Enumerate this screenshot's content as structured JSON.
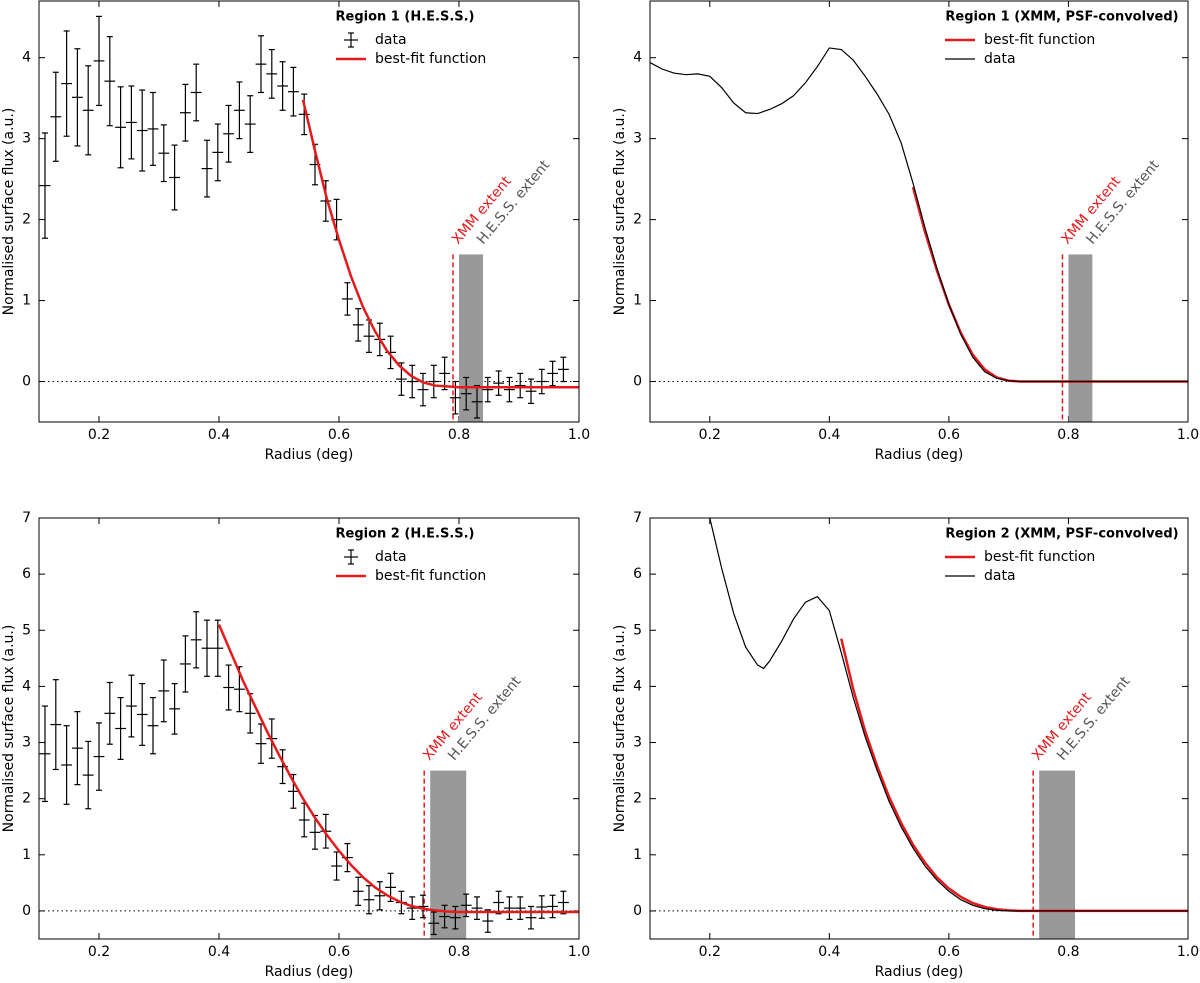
{
  "chart_data": [
    {
      "type": "errorbar",
      "title": "Region 1 (H.E.S.S.)",
      "xlabel": "Radius (deg)",
      "ylabel": "Normalised surface flux (a.u.)",
      "xlim": [
        0.1,
        1.0
      ],
      "ylim": [
        -0.5,
        4.7
      ],
      "xticks": [
        0.2,
        0.4,
        0.6,
        0.8,
        {
          "value": 1,
          "label": "1.0"
        }
      ],
      "yticks": [
        0,
        1,
        2,
        3,
        4
      ],
      "series": [
        {
          "name": "data",
          "style": "errorbar",
          "color": "#000000",
          "xerr": 0.009,
          "x": [
            0.11,
            0.128,
            0.146,
            0.164,
            0.182,
            0.2,
            0.218,
            0.236,
            0.254,
            0.272,
            0.29,
            0.308,
            0.326,
            0.344,
            0.362,
            0.38,
            0.398,
            0.416,
            0.434,
            0.452,
            0.47,
            0.488,
            0.506,
            0.524,
            0.542,
            0.56,
            0.578,
            0.596,
            0.614,
            0.632,
            0.65,
            0.668,
            0.686,
            0.704,
            0.722,
            0.74,
            0.758,
            0.776,
            0.794,
            0.812,
            0.83,
            0.848,
            0.866,
            0.884,
            0.902,
            0.92,
            0.938,
            0.956,
            0.974
          ],
          "values": [
            2.42,
            3.27,
            3.68,
            3.51,
            3.35,
            3.96,
            3.71,
            3.14,
            3.2,
            3.1,
            3.12,
            2.82,
            2.52,
            3.32,
            3.57,
            2.63,
            2.83,
            3.06,
            3.35,
            3.18,
            3.92,
            3.8,
            3.65,
            3.58,
            3.3,
            2.68,
            2.23,
            2.0,
            1.02,
            0.7,
            0.56,
            0.52,
            0.36,
            0.03,
            0.0,
            -0.1,
            0.0,
            0.1,
            -0.2,
            -0.15,
            -0.25,
            -0.1,
            -0.02,
            -0.1,
            -0.05,
            -0.12,
            0.0,
            0.1,
            0.15
          ],
          "yerr": [
            0.65,
            0.55,
            0.65,
            0.6,
            0.55,
            0.55,
            0.55,
            0.5,
            0.45,
            0.5,
            0.45,
            0.35,
            0.4,
            0.35,
            0.35,
            0.35,
            0.35,
            0.35,
            0.35,
            0.35,
            0.35,
            0.3,
            0.3,
            0.3,
            0.25,
            0.25,
            0.25,
            0.25,
            0.2,
            0.2,
            0.2,
            0.2,
            0.2,
            0.2,
            0.2,
            0.2,
            0.2,
            0.2,
            0.2,
            0.2,
            0.2,
            0.15,
            0.15,
            0.15,
            0.15,
            0.15,
            0.15,
            0.15,
            0.15
          ]
        },
        {
          "name": "best-fit function",
          "style": "line",
          "color": "#e41a1c",
          "width": 2.5,
          "x": [
            0.54,
            0.56,
            0.58,
            0.6,
            0.62,
            0.64,
            0.66,
            0.68,
            0.7,
            0.72,
            0.74,
            0.76,
            0.78,
            0.8,
            0.9,
            1.0
          ],
          "values": [
            3.48,
            2.85,
            2.25,
            1.75,
            1.3,
            0.92,
            0.62,
            0.38,
            0.2,
            0.07,
            -0.01,
            -0.05,
            -0.06,
            -0.07,
            -0.07,
            -0.07
          ]
        }
      ],
      "xmm_extent": 0.79,
      "hess_extent": [
        0.8,
        0.84
      ],
      "extent_height": 1.57,
      "xmm_label": "XMM extent",
      "hess_label": "H.E.S.S. extent"
    },
    {
      "type": "line",
      "title": "Region 1 (XMM, PSF-convolved)",
      "xlabel": "Radius (deg)",
      "ylabel": "Normalised surface flux (a.u.)",
      "xlim": [
        0.1,
        1.0
      ],
      "ylim": [
        -0.5,
        4.7
      ],
      "xticks": [
        0.2,
        0.4,
        0.6,
        0.8,
        {
          "value": 1,
          "label": "1.0"
        }
      ],
      "yticks": [
        0,
        1,
        2,
        3,
        4
      ],
      "series": [
        {
          "name": "best-fit function",
          "style": "line",
          "color": "#e41a1c",
          "width": 2.5,
          "x": [
            0.54,
            0.56,
            0.58,
            0.6,
            0.62,
            0.64,
            0.66,
            0.68,
            0.7,
            0.72,
            1.0
          ],
          "values": [
            2.4,
            1.85,
            1.37,
            0.95,
            0.6,
            0.33,
            0.15,
            0.05,
            0.01,
            0,
            0
          ]
        },
        {
          "name": "data",
          "style": "line",
          "color": "#000000",
          "width": 1.2,
          "x": [
            0.1,
            0.12,
            0.14,
            0.16,
            0.18,
            0.2,
            0.22,
            0.24,
            0.26,
            0.28,
            0.3,
            0.32,
            0.34,
            0.36,
            0.38,
            0.4,
            0.42,
            0.44,
            0.46,
            0.48,
            0.5,
            0.52,
            0.54,
            0.56,
            0.58,
            0.6,
            0.62,
            0.64,
            0.66,
            0.68,
            0.7,
            0.72,
            1.0
          ],
          "values": [
            3.94,
            3.86,
            3.81,
            3.79,
            3.8,
            3.77,
            3.63,
            3.44,
            3.32,
            3.31,
            3.36,
            3.43,
            3.53,
            3.69,
            3.89,
            4.12,
            4.1,
            3.97,
            3.77,
            3.55,
            3.3,
            2.95,
            2.45,
            1.9,
            1.4,
            0.95,
            0.58,
            0.3,
            0.12,
            0.04,
            0.01,
            0,
            0
          ]
        }
      ],
      "xmm_extent": 0.79,
      "hess_extent": [
        0.8,
        0.84
      ],
      "extent_height": 1.57,
      "xmm_label": "XMM extent",
      "hess_label": "H.E.S.S. extent"
    },
    {
      "type": "errorbar",
      "title": "Region 2 (H.E.S.S.)",
      "xlabel": "Radius (deg)",
      "ylabel": "Normalised surface flux (a.u.)",
      "xlim": [
        0.1,
        1.0
      ],
      "ylim": [
        -0.5,
        7
      ],
      "xticks": [
        0.2,
        0.4,
        0.6,
        0.8,
        {
          "value": 1,
          "label": "1.0"
        }
      ],
      "yticks": [
        0,
        1,
        2,
        3,
        4,
        5,
        6,
        7
      ],
      "series": [
        {
          "name": "data",
          "style": "errorbar",
          "color": "#000000",
          "xerr": 0.009,
          "x": [
            0.11,
            0.128,
            0.146,
            0.164,
            0.182,
            0.2,
            0.218,
            0.236,
            0.254,
            0.272,
            0.29,
            0.308,
            0.326,
            0.344,
            0.362,
            0.38,
            0.398,
            0.416,
            0.434,
            0.452,
            0.47,
            0.488,
            0.506,
            0.524,
            0.542,
            0.56,
            0.578,
            0.596,
            0.614,
            0.632,
            0.65,
            0.668,
            0.686,
            0.704,
            0.722,
            0.74,
            0.758,
            0.776,
            0.794,
            0.812,
            0.83,
            0.848,
            0.866,
            0.884,
            0.902,
            0.92,
            0.938,
            0.956,
            0.974
          ],
          "values": [
            2.8,
            3.32,
            2.6,
            2.9,
            2.42,
            2.75,
            3.52,
            3.25,
            3.65,
            3.5,
            3.3,
            3.92,
            3.6,
            4.4,
            4.83,
            4.68,
            4.68,
            3.98,
            3.95,
            3.52,
            2.98,
            3.07,
            2.57,
            2.13,
            1.62,
            1.4,
            1.42,
            0.8,
            0.95,
            0.35,
            0.2,
            0.27,
            0.42,
            0.15,
            0.05,
            0.08,
            -0.22,
            -0.1,
            -0.12,
            0.1,
            0.05,
            -0.18,
            0.15,
            0.05,
            0.05,
            -0.12,
            0.07,
            0.08,
            0.15
          ],
          "yerr": [
            0.85,
            0.8,
            0.7,
            0.65,
            0.6,
            0.6,
            0.55,
            0.55,
            0.55,
            0.55,
            0.5,
            0.55,
            0.45,
            0.5,
            0.5,
            0.5,
            0.5,
            0.4,
            0.4,
            0.35,
            0.35,
            0.35,
            0.3,
            0.3,
            0.3,
            0.3,
            0.3,
            0.25,
            0.25,
            0.25,
            0.25,
            0.25,
            0.25,
            0.2,
            0.2,
            0.2,
            0.2,
            0.2,
            0.2,
            0.2,
            0.2,
            0.2,
            0.2,
            0.2,
            0.2,
            0.2,
            0.2,
            0.2,
            0.2
          ]
        },
        {
          "name": "best-fit function",
          "style": "line",
          "color": "#e41a1c",
          "width": 2.5,
          "x": [
            0.4,
            0.42,
            0.44,
            0.46,
            0.48,
            0.5,
            0.52,
            0.54,
            0.56,
            0.58,
            0.6,
            0.62,
            0.64,
            0.66,
            0.68,
            0.7,
            0.72,
            0.74,
            0.76,
            0.78,
            0.8,
            0.9,
            1.0
          ],
          "values": [
            5.1,
            4.6,
            4.1,
            3.65,
            3.2,
            2.78,
            2.38,
            2.0,
            1.66,
            1.35,
            1.07,
            0.82,
            0.6,
            0.42,
            0.28,
            0.17,
            0.09,
            0.04,
            0.01,
            -0.01,
            -0.02,
            -0.02,
            -0.02
          ]
        }
      ],
      "xmm_extent": 0.742,
      "hess_extent": [
        0.752,
        0.812
      ],
      "extent_height": 2.5,
      "xmm_label": "XMM extent",
      "hess_label": "H.E.S.S. extent"
    },
    {
      "type": "line",
      "title": "Region 2 (XMM, PSF-convolved)",
      "xlabel": "Radius (deg)",
      "ylabel": "Normalised surface flux (a.u.)",
      "xlim": [
        0.1,
        1.0
      ],
      "ylim": [
        -0.5,
        7
      ],
      "xticks": [
        0.2,
        0.4,
        0.6,
        0.8,
        {
          "value": 1,
          "label": "1.0"
        }
      ],
      "yticks": [
        0,
        1,
        2,
        3,
        4,
        5,
        6,
        7
      ],
      "series": [
        {
          "name": "best-fit function",
          "style": "line",
          "color": "#e41a1c",
          "width": 2.5,
          "x": [
            0.42,
            0.44,
            0.46,
            0.48,
            0.5,
            0.52,
            0.54,
            0.56,
            0.58,
            0.6,
            0.62,
            0.64,
            0.66,
            0.68,
            0.7,
            0.72,
            1.0
          ],
          "values": [
            4.85,
            3.95,
            3.2,
            2.58,
            2.03,
            1.57,
            1.18,
            0.86,
            0.6,
            0.4,
            0.25,
            0.14,
            0.07,
            0.03,
            0.01,
            0,
            0
          ]
        },
        {
          "name": "data",
          "style": "line",
          "color": "#000000",
          "width": 1.2,
          "x": [
            0.2,
            0.22,
            0.24,
            0.26,
            0.28,
            0.29,
            0.3,
            0.32,
            0.34,
            0.36,
            0.38,
            0.4,
            0.42,
            0.44,
            0.46,
            0.48,
            0.5,
            0.52,
            0.54,
            0.56,
            0.58,
            0.6,
            0.62,
            0.64,
            0.66,
            0.68,
            0.7,
            1.0
          ],
          "values": [
            7.0,
            6.1,
            5.3,
            4.7,
            4.38,
            4.32,
            4.45,
            4.8,
            5.2,
            5.5,
            5.6,
            5.35,
            4.6,
            3.8,
            3.1,
            2.5,
            1.95,
            1.5,
            1.12,
            0.8,
            0.55,
            0.35,
            0.2,
            0.1,
            0.04,
            0.01,
            0,
            0
          ]
        }
      ],
      "xmm_extent": 0.741,
      "hess_extent": [
        0.751,
        0.811
      ],
      "extent_height": 2.5,
      "xmm_label": "XMM extent",
      "hess_label": "H.E.S.S. extent"
    }
  ]
}
